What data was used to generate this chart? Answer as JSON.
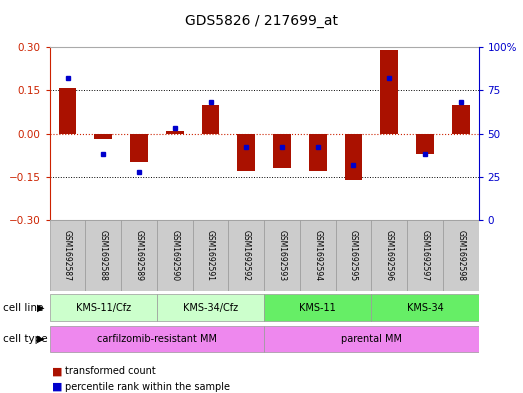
{
  "title": "GDS5826 / 217699_at",
  "samples": [
    "GSM1692587",
    "GSM1692588",
    "GSM1692589",
    "GSM1692590",
    "GSM1692591",
    "GSM1692592",
    "GSM1692593",
    "GSM1692594",
    "GSM1692595",
    "GSM1692596",
    "GSM1692597",
    "GSM1692598"
  ],
  "red_values": [
    0.16,
    -0.02,
    -0.1,
    0.01,
    0.1,
    -0.13,
    -0.12,
    -0.13,
    -0.16,
    0.29,
    -0.07,
    0.1
  ],
  "blue_values": [
    82,
    38,
    28,
    53,
    68,
    42,
    42,
    42,
    32,
    82,
    38,
    68
  ],
  "cell_lines": [
    {
      "label": "KMS-11/Cfz",
      "start": 0,
      "end": 3,
      "color": "#ccffcc"
    },
    {
      "label": "KMS-34/Cfz",
      "start": 3,
      "end": 6,
      "color": "#ccffcc"
    },
    {
      "label": "KMS-11",
      "start": 6,
      "end": 9,
      "color": "#66ee66"
    },
    {
      "label": "KMS-34",
      "start": 9,
      "end": 12,
      "color": "#66ee66"
    }
  ],
  "cell_types": [
    {
      "label": "carfilzomib-resistant MM",
      "start": 0,
      "end": 6,
      "color": "#ee88ee"
    },
    {
      "label": "parental MM",
      "start": 6,
      "end": 12,
      "color": "#ee88ee"
    }
  ],
  "ylim_left": [
    -0.3,
    0.3
  ],
  "ylim_right": [
    0,
    100
  ],
  "yticks_left": [
    -0.3,
    -0.15,
    0.0,
    0.15,
    0.3
  ],
  "yticks_right": [
    0,
    25,
    50,
    75,
    100
  ],
  "left_axis_color": "#cc2200",
  "right_axis_color": "#0000cc",
  "bar_color": "#aa1100",
  "dot_color": "#0000cc",
  "zero_line_color": "#cc2200",
  "grid_color": "#000000",
  "bg_color": "#ffffff",
  "sample_bg": "#cccccc",
  "cell_line_row_label": "cell line",
  "cell_type_row_label": "cell type",
  "legend_items": [
    "transformed count",
    "percentile rank within the sample"
  ]
}
